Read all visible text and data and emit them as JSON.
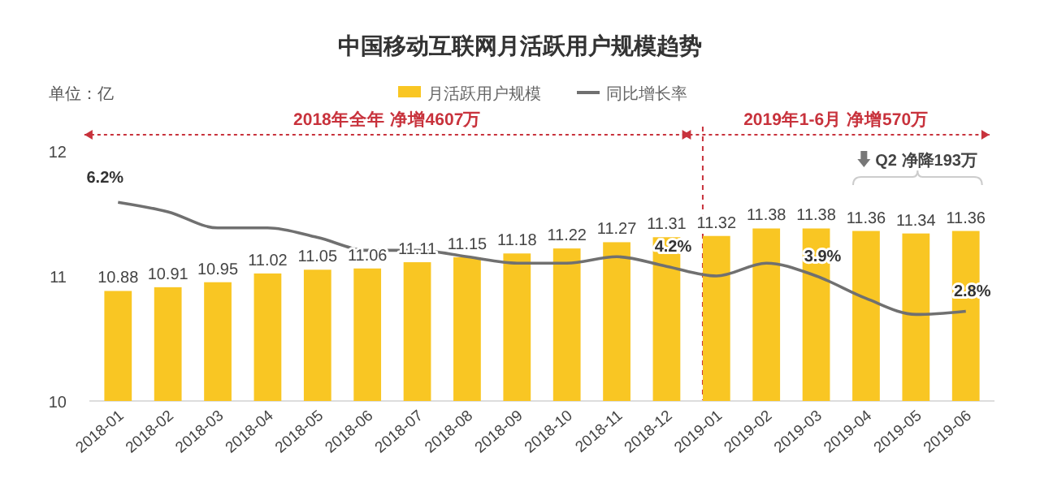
{
  "chart_data": {
    "type": "bar",
    "title": "中国移动互联网月活跃用户规模趋势",
    "ylabel": "单位：亿",
    "categories": [
      "2018-01",
      "2018-02",
      "2018-03",
      "2018-04",
      "2018-05",
      "2018-06",
      "2018-07",
      "2018-08",
      "2018-09",
      "2018-10",
      "2018-11",
      "2018-12",
      "2019-01",
      "2019-02",
      "2019-03",
      "2019-04",
      "2019-05",
      "2019-06"
    ],
    "series": [
      {
        "name": "月活跃用户规模",
        "color": "#f9c623",
        "values": [
          10.88,
          10.91,
          10.95,
          11.02,
          11.05,
          11.06,
          11.11,
          11.15,
          11.18,
          11.22,
          11.27,
          11.31,
          11.32,
          11.38,
          11.38,
          11.36,
          11.34,
          11.36
        ]
      },
      {
        "name": "同比增长率",
        "type": "line",
        "axis": "y2",
        "color": "#707070",
        "values": [
          6.2,
          5.9,
          5.4,
          5.4,
          5.1,
          4.7,
          4.7,
          4.5,
          4.3,
          4.3,
          4.5,
          4.2,
          3.9,
          4.3,
          3.9,
          3.2,
          2.7,
          2.8
        ],
        "value_labels": [
          "6.2%",
          null,
          null,
          null,
          null,
          null,
          null,
          null,
          null,
          null,
          null,
          "4.2%",
          null,
          null,
          "3.9%",
          null,
          null,
          "2.8%"
        ]
      }
    ],
    "ylim": [
      10,
      12
    ],
    "yticks": [
      10,
      11,
      12
    ],
    "y2lim": [
      0,
      7.8
    ],
    "data_labels": true,
    "grid": false,
    "legend": "top",
    "tick_labels": [
      "x",
      "y"
    ],
    "ref_lines": [
      {
        "axis": "x",
        "value": "2019-01",
        "color": "#c8323c",
        "line_style": "dashed"
      }
    ],
    "annotations": [
      "2018年全年  净增4607万",
      "2019年1-6月  净增570万",
      "Q2 净降193万"
    ]
  }
}
